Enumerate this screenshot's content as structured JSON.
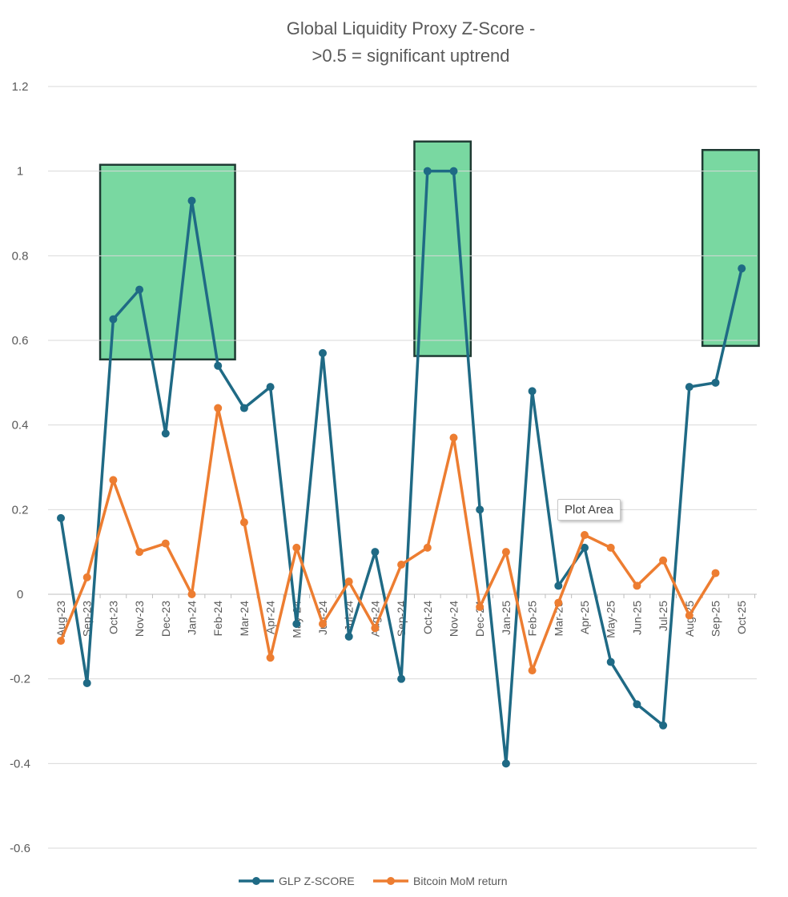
{
  "chart_data": {
    "type": "line",
    "title": "Global Liquidity Proxy Z-Score -",
    "subtitle": ">0.5 = significant uptrend",
    "xlabel": "",
    "ylabel": "",
    "ylim": [
      -0.6,
      1.2
    ],
    "ytick_values": [
      -0.6,
      -0.4,
      -0.2,
      0,
      0.2,
      0.4,
      0.6,
      0.8,
      1,
      1.2
    ],
    "ytick_labels": [
      "-0.6",
      "-0.4",
      "-0.2",
      "0",
      "0.2",
      "0.4",
      "0.6",
      "0.8",
      "1",
      "1.2"
    ],
    "grid": true,
    "legend_position": "bottom",
    "categories": [
      "Aug-23",
      "Sep-23",
      "Oct-23",
      "Nov-23",
      "Dec-23",
      "Jan-24",
      "Feb-24",
      "Mar-24",
      "Apr-24",
      "May-24",
      "Jun-24",
      "Jul-24",
      "Aug-24",
      "Sep-24",
      "Oct-24",
      "Nov-24",
      "Dec-24",
      "Jan-25",
      "Feb-25",
      "Mar-25",
      "Apr-25",
      "May-25",
      "Jun-25",
      "Jul-25",
      "Aug-25",
      "Sep-25",
      "Oct-25"
    ],
    "series": [
      {
        "name": "GLP Z-SCORE",
        "color": "#1f6a85",
        "values": [
          0.18,
          -0.21,
          0.65,
          0.72,
          0.38,
          0.93,
          0.54,
          0.44,
          0.49,
          -0.07,
          0.57,
          -0.1,
          0.1,
          -0.2,
          1.0,
          1.0,
          0.2,
          -0.4,
          0.48,
          0.02,
          0.11,
          -0.16,
          -0.26,
          -0.31,
          0.49,
          0.5,
          0.77
        ]
      },
      {
        "name": "Bitcoin MoM return",
        "color": "#ed7d31",
        "values": [
          -0.11,
          0.04,
          0.27,
          0.1,
          0.12,
          0.0,
          0.44,
          0.17,
          -0.15,
          0.11,
          -0.07,
          0.03,
          -0.08,
          0.07,
          0.11,
          0.37,
          -0.03,
          0.1,
          -0.18,
          -0.02,
          0.14,
          0.11,
          0.02,
          0.08,
          -0.05,
          0.05,
          null
        ]
      }
    ],
    "highlight_regions": [
      {
        "from": "Oct-23",
        "to": "Feb-24",
        "y_low": 0.555,
        "y_high": 1.015,
        "color": "#5ccf8c"
      },
      {
        "from": "Oct-24",
        "to": "Nov-24",
        "y_low": 0.563,
        "y_high": 1.07,
        "color": "#5ccf8c"
      },
      {
        "from": "Sep-25",
        "to": "Oct-25",
        "y_low": 0.587,
        "y_high": 1.05,
        "color": "#5ccf8c"
      }
    ],
    "annotations": [
      {
        "text": "Plot Area",
        "near": "Mar-25"
      }
    ]
  }
}
